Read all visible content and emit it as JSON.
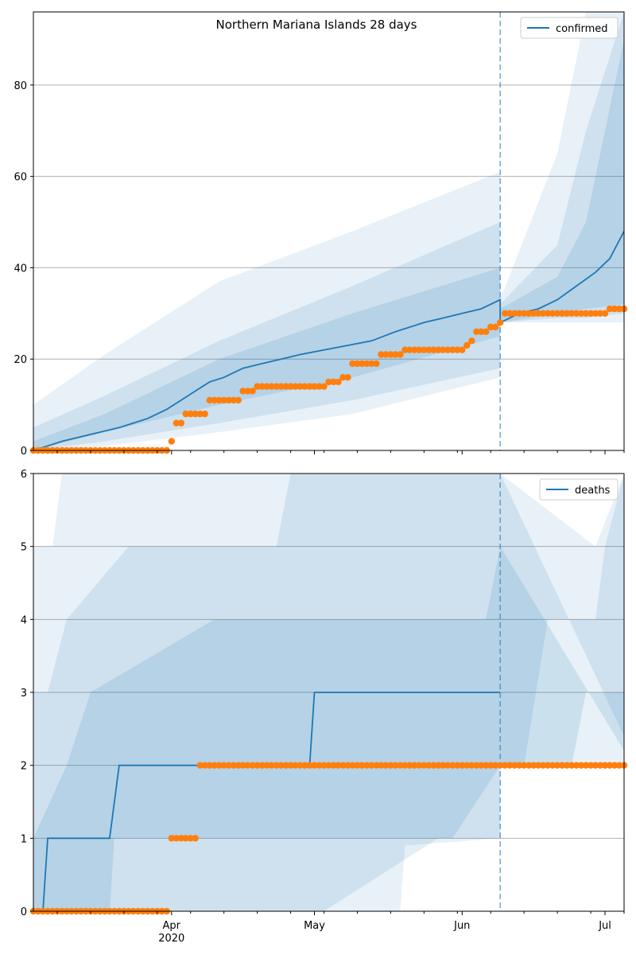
{
  "figure": {
    "title": "Northern Mariana Islands 28 days"
  },
  "chart_data": [
    {
      "type": "line",
      "name": "confirmed-panel",
      "x_start": "2020-03-03",
      "x_end": "2020-07-05",
      "forecast_start": "2020-06-09",
      "ylim": [
        0,
        96
      ],
      "yticks": [
        0,
        20,
        40,
        60,
        80
      ],
      "grid": true,
      "legend_position": "upper right",
      "colors": {
        "model": "#1f77b4",
        "observed": "#ff7f0e",
        "band": "#1f77b4"
      },
      "series": [
        {
          "name": "confirmed",
          "points": [
            [
              "2020-03-03",
              0
            ],
            [
              "2020-03-06",
              1
            ],
            [
              "2020-03-09",
              2
            ],
            [
              "2020-03-13",
              3
            ],
            [
              "2020-03-17",
              4
            ],
            [
              "2020-03-21",
              5
            ],
            [
              "2020-03-24",
              6
            ],
            [
              "2020-03-27",
              7
            ],
            [
              "2020-03-31",
              9
            ],
            [
              "2020-04-03",
              11
            ],
            [
              "2020-04-06",
              13
            ],
            [
              "2020-04-09",
              15
            ],
            [
              "2020-04-12",
              16
            ],
            [
              "2020-04-16",
              18
            ],
            [
              "2020-04-20",
              19
            ],
            [
              "2020-04-24",
              20
            ],
            [
              "2020-04-28",
              21
            ],
            [
              "2020-05-03",
              22
            ],
            [
              "2020-05-08",
              23
            ],
            [
              "2020-05-13",
              24
            ],
            [
              "2020-05-18",
              26
            ],
            [
              "2020-05-24",
              28
            ],
            [
              "2020-05-28",
              29
            ],
            [
              "2020-06-01",
              30
            ],
            [
              "2020-06-05",
              31
            ],
            [
              "2020-06-09",
              33
            ],
            [
              "2020-06-09",
              28
            ],
            [
              "2020-06-13",
              30
            ],
            [
              "2020-06-17",
              31
            ],
            [
              "2020-06-21",
              33
            ],
            [
              "2020-06-25",
              36
            ],
            [
              "2020-06-29",
              39
            ],
            [
              "2020-07-02",
              42
            ],
            [
              "2020-07-05",
              48
            ]
          ]
        }
      ],
      "observed": {
        "points": [
          [
            "2020-03-03",
            0
          ],
          [
            "2020-03-31",
            0
          ],
          [
            "2020-04-01",
            2
          ],
          [
            "2020-04-02",
            6
          ],
          [
            "2020-04-04",
            8
          ],
          [
            "2020-04-08",
            8
          ],
          [
            "2020-04-09",
            11
          ],
          [
            "2020-04-15",
            11
          ],
          [
            "2020-04-16",
            13
          ],
          [
            "2020-04-18",
            13
          ],
          [
            "2020-04-19",
            14
          ],
          [
            "2020-05-03",
            14
          ],
          [
            "2020-05-04",
            15
          ],
          [
            "2020-05-07",
            16
          ],
          [
            "2020-05-09",
            19
          ],
          [
            "2020-05-14",
            19
          ],
          [
            "2020-05-15",
            21
          ],
          [
            "2020-05-19",
            21
          ],
          [
            "2020-05-20",
            22
          ],
          [
            "2020-06-01",
            22
          ],
          [
            "2020-06-02",
            23
          ],
          [
            "2020-06-03",
            24
          ],
          [
            "2020-06-04",
            26
          ],
          [
            "2020-06-07",
            27
          ],
          [
            "2020-06-09",
            28
          ],
          [
            "2020-06-10",
            30
          ],
          [
            "2020-07-01",
            30
          ],
          [
            "2020-07-02",
            31
          ],
          [
            "2020-07-05",
            31
          ]
        ]
      },
      "bands": [
        {
          "x": [
            "2020-03-03",
            "2020-03-18",
            "2020-04-11",
            "2020-05-09",
            "2020-06-09",
            "2020-06-09",
            "2020-06-21",
            "2020-06-27",
            "2020-07-05"
          ],
          "lower": [
            0,
            1,
            4,
            8,
            16,
            28,
            28,
            28,
            28
          ],
          "upper": [
            10,
            21,
            37,
            48,
            61,
            33,
            65,
            96,
            96
          ]
        },
        {
          "x": [
            "2020-03-03",
            "2020-03-18",
            "2020-04-11",
            "2020-05-09",
            "2020-06-09",
            "2020-06-09",
            "2020-06-21",
            "2020-06-27",
            "2020-07-05"
          ],
          "lower": [
            0,
            2,
            6,
            11,
            18,
            28,
            29,
            29,
            30
          ],
          "upper": [
            5,
            12,
            24,
            36,
            50,
            32,
            45,
            70,
            96
          ]
        },
        {
          "x": [
            "2020-03-03",
            "2020-03-18",
            "2020-04-11",
            "2020-05-09",
            "2020-06-09",
            "2020-06-09",
            "2020-06-21",
            "2020-06-27",
            "2020-07-05"
          ],
          "lower": [
            0,
            4,
            10,
            16,
            25,
            28,
            30,
            31,
            32
          ],
          "upper": [
            2,
            8,
            20,
            30,
            40,
            31,
            38,
            50,
            90
          ]
        }
      ]
    },
    {
      "type": "line",
      "name": "deaths-panel",
      "x_start": "2020-03-03",
      "x_end": "2020-07-05",
      "forecast_start": "2020-06-09",
      "ylim": [
        0,
        6
      ],
      "yticks": [
        0,
        1,
        2,
        3,
        4,
        5,
        6
      ],
      "grid": true,
      "legend_position": "upper right",
      "x_tick_labels": [
        {
          "date": "2020-04-01",
          "label": "Apr"
        },
        {
          "date": "2020-05-01",
          "label": "May"
        },
        {
          "date": "2020-06-01",
          "label": "Jun"
        },
        {
          "date": "2020-07-01",
          "label": "Jul"
        }
      ],
      "year_label": "2020",
      "colors": {
        "model": "#1f77b4",
        "observed": "#ff7f0e",
        "band": "#1f77b4"
      },
      "series": [
        {
          "name": "deaths",
          "points": [
            [
              "2020-03-03",
              0
            ],
            [
              "2020-03-05",
              0
            ],
            [
              "2020-03-06",
              1
            ],
            [
              "2020-03-19",
              1
            ],
            [
              "2020-03-21",
              2
            ],
            [
              "2020-04-30",
              2
            ],
            [
              "2020-05-01",
              3
            ],
            [
              "2020-06-09",
              3
            ]
          ]
        }
      ],
      "observed": {
        "points": [
          [
            "2020-03-03",
            0
          ],
          [
            "2020-03-31",
            0
          ],
          [
            "2020-04-01",
            1
          ],
          [
            "2020-04-06",
            1
          ],
          [
            "2020-04-07",
            2
          ],
          [
            "2020-07-05",
            2
          ]
        ]
      },
      "bands": [
        {
          "polygon": [
            [
              "2020-03-03",
              0
            ],
            [
              "2020-05-19",
              0
            ],
            [
              "2020-05-20",
              0.9
            ],
            [
              "2020-06-09",
              1
            ],
            [
              "2020-06-09",
              2
            ],
            [
              "2020-07-05",
              2
            ],
            [
              "2020-07-05",
              6
            ],
            [
              "2020-06-29",
              5
            ],
            [
              "2020-06-09",
              6
            ],
            [
              "2020-03-09",
              6
            ],
            [
              "2020-03-07",
              5
            ],
            [
              "2020-03-03",
              5
            ]
          ]
        },
        {
          "polygon": [
            [
              "2020-03-03",
              0
            ],
            [
              "2020-05-03",
              0
            ],
            [
              "2020-05-27",
              1
            ],
            [
              "2020-06-09",
              1
            ],
            [
              "2020-06-09",
              2
            ],
            [
              "2020-06-14",
              2
            ],
            [
              "2020-06-19",
              4
            ],
            [
              "2020-06-29",
              4
            ],
            [
              "2020-07-01",
              5
            ],
            [
              "2020-07-05",
              6
            ],
            [
              "2020-07-05",
              2.4
            ],
            [
              "2020-06-09",
              6
            ],
            [
              "2020-04-26",
              6
            ],
            [
              "2020-04-23",
              5
            ],
            [
              "2020-03-23",
              5
            ],
            [
              "2020-03-10",
              4
            ],
            [
              "2020-03-06",
              3
            ],
            [
              "2020-03-03",
              3
            ]
          ]
        },
        {
          "polygon": [
            [
              "2020-03-03",
              0
            ],
            [
              "2020-03-05",
              0
            ],
            [
              "2020-03-19",
              0
            ],
            [
              "2020-03-20",
              1
            ],
            [
              "2020-05-30",
              1
            ],
            [
              "2020-06-09",
              2
            ],
            [
              "2020-06-09",
              2
            ],
            [
              "2020-06-24",
              2
            ],
            [
              "2020-06-27",
              3
            ],
            [
              "2020-07-05",
              3
            ],
            [
              "2020-07-05",
              2.2
            ],
            [
              "2020-06-09",
              5
            ],
            [
              "2020-06-06",
              4
            ],
            [
              "2020-04-10",
              4
            ],
            [
              "2020-03-15",
              3
            ],
            [
              "2020-03-10",
              2
            ],
            [
              "2020-03-03",
              1
            ]
          ]
        }
      ]
    }
  ]
}
